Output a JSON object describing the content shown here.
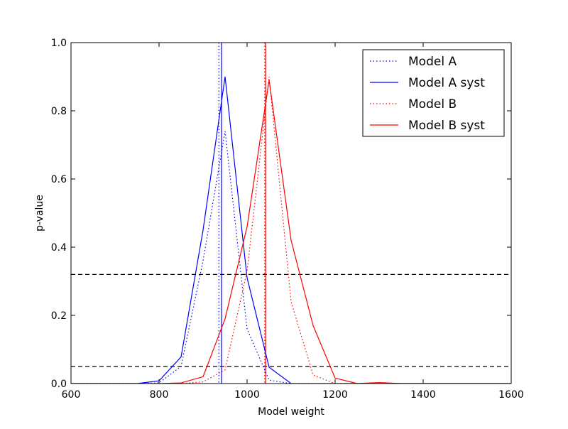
{
  "chart_data": {
    "type": "line",
    "title": "",
    "xlabel": "Model weight",
    "ylabel": "p-value",
    "xlim": [
      600,
      1600
    ],
    "ylim": [
      0.0,
      1.0
    ],
    "xticks": [
      "600",
      "800",
      "1000",
      "1200",
      "1400",
      "1600"
    ],
    "yticks": [
      "0.0",
      "0.2",
      "0.4",
      "0.6",
      "0.8",
      "1.0"
    ],
    "grid": false,
    "legend_position": "top-right",
    "series": [
      {
        "name": "Model A",
        "color": "#0000ff",
        "style": "dotted",
        "x": [
          600,
          650,
          700,
          750,
          800,
          850,
          900,
          950,
          1000,
          1050,
          1100,
          1150,
          1200,
          1250,
          1300,
          1350,
          1400,
          1450,
          1500,
          1550,
          1600
        ],
        "y": [
          0,
          0,
          0,
          0,
          0.002,
          0.05,
          0.36,
          0.74,
          0.16,
          0.01,
          0.0,
          0,
          0,
          0,
          0,
          0,
          0,
          0,
          0,
          0,
          0
        ]
      },
      {
        "name": "Model A syst",
        "color": "#0000ff",
        "style": "solid",
        "x": [
          600,
          650,
          700,
          750,
          800,
          850,
          900,
          950,
          1000,
          1050,
          1100,
          1150,
          1200,
          1250,
          1300,
          1350,
          1400,
          1450,
          1500,
          1550,
          1600
        ],
        "y": [
          0,
          0,
          0,
          0,
          0.008,
          0.078,
          0.45,
          0.9,
          0.31,
          0.048,
          0.0,
          0,
          0,
          0,
          0,
          0,
          0,
          0,
          0,
          0,
          0
        ]
      },
      {
        "name": "Model B",
        "color": "#ff0000",
        "style": "dotted",
        "x": [
          600,
          650,
          700,
          750,
          800,
          850,
          900,
          950,
          1000,
          1050,
          1100,
          1150,
          1200,
          1250,
          1300,
          1350,
          1400,
          1450,
          1500,
          1550,
          1600
        ],
        "y": [
          0,
          0,
          0,
          0,
          0,
          0,
          0.005,
          0.04,
          0.33,
          0.9,
          0.24,
          0.025,
          0.0,
          0,
          0,
          0,
          0,
          0,
          0,
          0,
          0
        ]
      },
      {
        "name": "Model B syst",
        "color": "#ff0000",
        "style": "solid",
        "x": [
          600,
          650,
          700,
          750,
          800,
          850,
          900,
          950,
          1000,
          1050,
          1100,
          1150,
          1200,
          1250,
          1300,
          1350,
          1400,
          1450,
          1500,
          1550,
          1600
        ],
        "y": [
          0,
          0,
          0,
          0,
          0,
          0.002,
          0.02,
          0.19,
          0.46,
          0.89,
          0.42,
          0.17,
          0.016,
          0.0,
          0.003,
          0,
          0,
          0,
          0,
          0,
          0
        ]
      }
    ],
    "vertical_lines": [
      {
        "x": 936,
        "color": "#0000ff",
        "style": "dotted"
      },
      {
        "x": 942,
        "color": "#0000ff",
        "style": "solid"
      },
      {
        "x": 1040,
        "color": "#ff0000",
        "style": "dotted"
      },
      {
        "x": 1042,
        "color": "#ff0000",
        "style": "solid"
      }
    ],
    "horizontal_lines": [
      {
        "y": 0.32,
        "color": "#000000",
        "style": "dashed"
      },
      {
        "y": 0.05,
        "color": "#000000",
        "style": "dashed"
      }
    ]
  }
}
